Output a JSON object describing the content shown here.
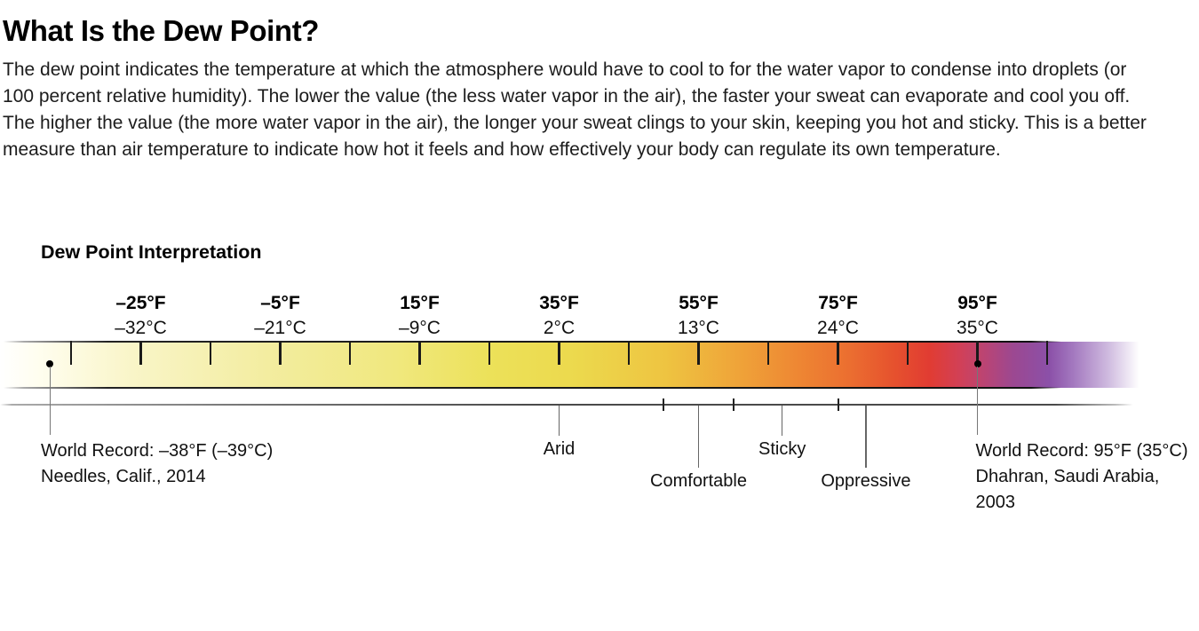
{
  "header": {
    "title": "What Is the Dew Point?",
    "intro": "The dew point indicates the temperature at which the atmosphere would have to cool to for the water vapor to condense into droplets (or 100 percent relative humidity). The lower the value (the less water vapor in the air), the faster your sweat can evaporate and cool you off. The higher the value (the more water vapor in the air), the longer your sweat clings to your skin, keeping you hot and sticky. This is a better measure than air temperature to indicate how hot it feels and how effectively your body can regulate its own temperature."
  },
  "chart": {
    "title": "Dew Point Interpretation",
    "chart_data": {
      "type": "colorbar-scale",
      "title": "Dew Point Interpretation",
      "axis_min_f": -35,
      "axis_max_f": 105,
      "tick_step_f": 10,
      "axis_labels": [
        {
          "f": "–25°F",
          "c": "–32°C",
          "value_f": -25
        },
        {
          "f": "–5°F",
          "c": "–21°C",
          "value_f": -5
        },
        {
          "f": "15°F",
          "c": "–9°C",
          "value_f": 15
        },
        {
          "f": "35°F",
          "c": "2°C",
          "value_f": 35
        },
        {
          "f": "55°F",
          "c": "13°C",
          "value_f": 55
        },
        {
          "f": "75°F",
          "c": "24°C",
          "value_f": 75
        },
        {
          "f": "95°F",
          "c": "35°C",
          "value_f": 95
        }
      ],
      "zones": [
        {
          "label": "Arid",
          "value_f": 35,
          "row": 1
        },
        {
          "label": "Comfortable",
          "value_f": 55,
          "row": 2
        },
        {
          "label": "Sticky",
          "value_f": 67,
          "row": 1
        },
        {
          "label": "Oppressive",
          "value_f": 79,
          "row": 2
        }
      ],
      "zone_boundaries_f": [
        50,
        60,
        75
      ],
      "records": [
        {
          "value_f": -38,
          "anchor": "chart-left",
          "lines": [
            "World Record: –38°F (–39°C)",
            "Needles, Calif., 2014"
          ]
        },
        {
          "value_f": 95,
          "anchor": "dot",
          "lines": [
            "World Record: 95°F (35°C)",
            "Dhahran, Saudi Arabia,",
            "2003"
          ]
        }
      ],
      "gradient_stops": [
        {
          "pct": 0,
          "color": "#ffffff"
        },
        {
          "pct": 3,
          "color": "#fffef0"
        },
        {
          "pct": 11,
          "color": "#f9f5c8"
        },
        {
          "pct": 22,
          "color": "#f3eda1"
        },
        {
          "pct": 33,
          "color": "#f0e87e"
        },
        {
          "pct": 41,
          "color": "#ece159"
        },
        {
          "pct": 48,
          "color": "#ecd94d"
        },
        {
          "pct": 55.5,
          "color": "#eec441"
        },
        {
          "pct": 61.5,
          "color": "#efa439"
        },
        {
          "pct": 66.5,
          "color": "#ee8733"
        },
        {
          "pct": 71,
          "color": "#eb6d30"
        },
        {
          "pct": 74.5,
          "color": "#e6522e"
        },
        {
          "pct": 77.5,
          "color": "#e13c32"
        },
        {
          "pct": 80,
          "color": "#d24056"
        },
        {
          "pct": 82,
          "color": "#bc4472"
        },
        {
          "pct": 84.5,
          "color": "#9c4891"
        },
        {
          "pct": 87.5,
          "color": "#8b50a8"
        },
        {
          "pct": 89.5,
          "color": "#a378bf"
        },
        {
          "pct": 92.5,
          "color": "#d0bce0"
        },
        {
          "pct": 95,
          "color": "#ffffff"
        },
        {
          "pct": 100,
          "color": "#ffffff"
        }
      ],
      "colors": {
        "tick": "#1a1a1a",
        "border_dark": "#111111",
        "leader_gray": "#666666",
        "baseline_gray": "#4a4a4a",
        "text": "#111111"
      }
    }
  }
}
